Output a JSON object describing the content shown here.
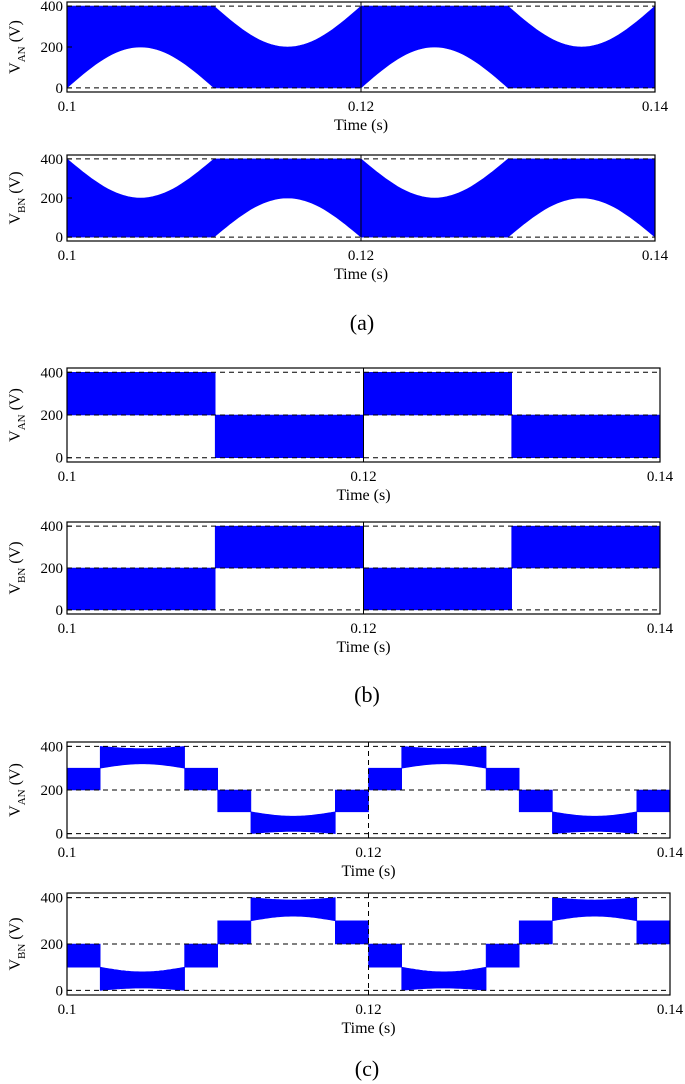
{
  "figure": {
    "captions": [
      "(a)",
      "(b)",
      "(c)"
    ],
    "style": {
      "trace_color": "#0000ff",
      "axis_color": "#000000",
      "reference_line_color": "#000000"
    }
  },
  "chart_data": [
    {
      "type": "area",
      "group": "(a)",
      "xlabel": "Time (s)",
      "ylabel": {
        "main": "V",
        "sub": "AN",
        "unit": " (V)"
      },
      "x_ticks": [
        "0.1",
        "0.12",
        "0.14"
      ],
      "y_ticks": [
        "0",
        "200",
        "400"
      ],
      "xlim": [
        0.1,
        0.14
      ],
      "ylim": [
        -20,
        420
      ],
      "reference_lines": [
        0,
        400
      ],
      "grid": false,
      "pattern": "carrier-modulated band with sinusoidal envelope",
      "segments": [
        {
          "t_start": 0.1,
          "t_end": 0.11,
          "lower": {
            "shape": "sine_low",
            "edge": 0,
            "mid": 200
          },
          "upper": 400
        },
        {
          "t_start": 0.11,
          "t_end": 0.12,
          "lower": 0,
          "upper": {
            "shape": "sine_high",
            "edge": 400,
            "mid": 200
          }
        },
        {
          "t_start": 0.12,
          "t_end": 0.13,
          "lower": {
            "shape": "sine_low",
            "edge": 0,
            "mid": 200
          },
          "upper": 400
        },
        {
          "t_start": 0.13,
          "t_end": 0.14,
          "lower": 0,
          "upper": {
            "shape": "sine_high",
            "edge": 400,
            "mid": 200
          }
        }
      ]
    },
    {
      "type": "area",
      "group": "(a)",
      "xlabel": "Time (s)",
      "ylabel": {
        "main": "V",
        "sub": "BN",
        "unit": " (V)"
      },
      "x_ticks": [
        "0.1",
        "0.12",
        "0.14"
      ],
      "y_ticks": [
        "0",
        "200",
        "400"
      ],
      "xlim": [
        0.1,
        0.14
      ],
      "ylim": [
        -20,
        420
      ],
      "reference_lines": [
        0,
        400
      ],
      "grid": false,
      "pattern": "carrier-modulated band with sinusoidal envelope",
      "segments": [
        {
          "t_start": 0.1,
          "t_end": 0.11,
          "lower": 0,
          "upper": {
            "shape": "sine_high",
            "edge": 400,
            "mid": 200
          }
        },
        {
          "t_start": 0.11,
          "t_end": 0.12,
          "lower": {
            "shape": "sine_low",
            "edge": 0,
            "mid": 200
          },
          "upper": 400
        },
        {
          "t_start": 0.12,
          "t_end": 0.13,
          "lower": 0,
          "upper": {
            "shape": "sine_high",
            "edge": 400,
            "mid": 200
          }
        },
        {
          "t_start": 0.13,
          "t_end": 0.14,
          "lower": {
            "shape": "sine_low",
            "edge": 0,
            "mid": 200
          },
          "upper": 400
        }
      ]
    },
    {
      "type": "area",
      "group": "(b)",
      "xlabel": "Time (s)",
      "ylabel": {
        "main": "V",
        "sub": "AN",
        "unit": " (V)"
      },
      "x_ticks": [
        "0.1",
        "0.12",
        "0.14"
      ],
      "y_ticks": [
        "0",
        "200",
        "400"
      ],
      "xlim": [
        0.1,
        0.14
      ],
      "ylim": [
        -20,
        420
      ],
      "reference_lines": [
        0,
        200,
        400
      ],
      "grid": false,
      "pattern": "two-level switching band",
      "segments": [
        {
          "t_start": 0.1,
          "t_end": 0.11,
          "lower": 200,
          "upper": 400
        },
        {
          "t_start": 0.11,
          "t_end": 0.12,
          "lower": 0,
          "upper": 200
        },
        {
          "t_start": 0.12,
          "t_end": 0.13,
          "lower": 200,
          "upper": 400
        },
        {
          "t_start": 0.13,
          "t_end": 0.14,
          "lower": 0,
          "upper": 200
        }
      ]
    },
    {
      "type": "area",
      "group": "(b)",
      "xlabel": "Time (s)",
      "ylabel": {
        "main": "V",
        "sub": "BN",
        "unit": " (V)"
      },
      "x_ticks": [
        "0.1",
        "0.12",
        "0.14"
      ],
      "y_ticks": [
        "0",
        "200",
        "400"
      ],
      "xlim": [
        0.1,
        0.14
      ],
      "ylim": [
        -20,
        420
      ],
      "reference_lines": [
        0,
        200,
        400
      ],
      "grid": false,
      "pattern": "two-level switching band",
      "segments": [
        {
          "t_start": 0.1,
          "t_end": 0.11,
          "lower": 0,
          "upper": 200
        },
        {
          "t_start": 0.11,
          "t_end": 0.12,
          "lower": 200,
          "upper": 400
        },
        {
          "t_start": 0.12,
          "t_end": 0.13,
          "lower": 0,
          "upper": 200
        },
        {
          "t_start": 0.13,
          "t_end": 0.14,
          "lower": 200,
          "upper": 400
        }
      ]
    },
    {
      "type": "area",
      "group": "(c)",
      "xlabel": "Time (s)",
      "ylabel": {
        "main": "V",
        "sub": "AN",
        "unit": " (V)"
      },
      "x_ticks": [
        "0.1",
        "0.12",
        "0.14"
      ],
      "y_ticks": [
        "0",
        "200",
        "400"
      ],
      "xlim": [
        0.1,
        0.14
      ],
      "ylim": [
        -20,
        420
      ],
      "reference_lines": [
        0,
        200,
        400
      ],
      "grid": false,
      "pattern": "stepped multilevel band",
      "segments": [
        {
          "t_start": 0.1,
          "t_end": 0.1022,
          "lower": 200,
          "upper": 300
        },
        {
          "t_start": 0.1022,
          "t_end": 0.1078,
          "lower": {
            "shape": "arc",
            "edge": 300,
            "mid": 320
          },
          "upper": {
            "shape": "arc",
            "edge": 400,
            "mid": 390
          }
        },
        {
          "t_start": 0.1078,
          "t_end": 0.11,
          "lower": 200,
          "upper": 300
        },
        {
          "t_start": 0.11,
          "t_end": 0.1122,
          "lower": 100,
          "upper": 200
        },
        {
          "t_start": 0.1122,
          "t_end": 0.1178,
          "lower": {
            "shape": "arc",
            "edge": 0,
            "mid": 10
          },
          "upper": {
            "shape": "arc",
            "edge": 100,
            "mid": 80
          }
        },
        {
          "t_start": 0.1178,
          "t_end": 0.12,
          "lower": 100,
          "upper": 200
        },
        {
          "t_start": 0.12,
          "t_end": 0.1222,
          "lower": 200,
          "upper": 300
        },
        {
          "t_start": 0.1222,
          "t_end": 0.1278,
          "lower": {
            "shape": "arc",
            "edge": 300,
            "mid": 320
          },
          "upper": {
            "shape": "arc",
            "edge": 400,
            "mid": 390
          }
        },
        {
          "t_start": 0.1278,
          "t_end": 0.13,
          "lower": 200,
          "upper": 300
        },
        {
          "t_start": 0.13,
          "t_end": 0.1322,
          "lower": 100,
          "upper": 200
        },
        {
          "t_start": 0.1322,
          "t_end": 0.1378,
          "lower": {
            "shape": "arc",
            "edge": 0,
            "mid": 10
          },
          "upper": {
            "shape": "arc",
            "edge": 100,
            "mid": 80
          }
        },
        {
          "t_start": 0.1378,
          "t_end": 0.14,
          "lower": 100,
          "upper": 200
        }
      ]
    },
    {
      "type": "area",
      "group": "(c)",
      "xlabel": "Time (s)",
      "ylabel": {
        "main": "V",
        "sub": "BN",
        "unit": " (V)"
      },
      "x_ticks": [
        "0.1",
        "0.12",
        "0.14"
      ],
      "y_ticks": [
        "0",
        "200",
        "400"
      ],
      "xlim": [
        0.1,
        0.14
      ],
      "ylim": [
        -20,
        420
      ],
      "reference_lines": [
        0,
        200,
        400
      ],
      "grid": false,
      "pattern": "stepped multilevel band",
      "segments": [
        {
          "t_start": 0.1,
          "t_end": 0.1022,
          "lower": 100,
          "upper": 200
        },
        {
          "t_start": 0.1022,
          "t_end": 0.1078,
          "lower": {
            "shape": "arc",
            "edge": 0,
            "mid": 10
          },
          "upper": {
            "shape": "arc",
            "edge": 100,
            "mid": 80
          }
        },
        {
          "t_start": 0.1078,
          "t_end": 0.11,
          "lower": 100,
          "upper": 200
        },
        {
          "t_start": 0.11,
          "t_end": 0.1122,
          "lower": 200,
          "upper": 300
        },
        {
          "t_start": 0.1122,
          "t_end": 0.1178,
          "lower": {
            "shape": "arc",
            "edge": 300,
            "mid": 320
          },
          "upper": {
            "shape": "arc",
            "edge": 400,
            "mid": 390
          }
        },
        {
          "t_start": 0.1178,
          "t_end": 0.12,
          "lower": 200,
          "upper": 300
        },
        {
          "t_start": 0.12,
          "t_end": 0.1222,
          "lower": 100,
          "upper": 200
        },
        {
          "t_start": 0.1222,
          "t_end": 0.1278,
          "lower": {
            "shape": "arc",
            "edge": 0,
            "mid": 10
          },
          "upper": {
            "shape": "arc",
            "edge": 100,
            "mid": 80
          }
        },
        {
          "t_start": 0.1278,
          "t_end": 0.13,
          "lower": 100,
          "upper": 200
        },
        {
          "t_start": 0.13,
          "t_end": 0.1322,
          "lower": 200,
          "upper": 300
        },
        {
          "t_start": 0.1322,
          "t_end": 0.1378,
          "lower": {
            "shape": "arc",
            "edge": 300,
            "mid": 320
          },
          "upper": {
            "shape": "arc",
            "edge": 400,
            "mid": 390
          }
        },
        {
          "t_start": 0.1378,
          "t_end": 0.14,
          "lower": 200,
          "upper": 300
        }
      ]
    }
  ]
}
